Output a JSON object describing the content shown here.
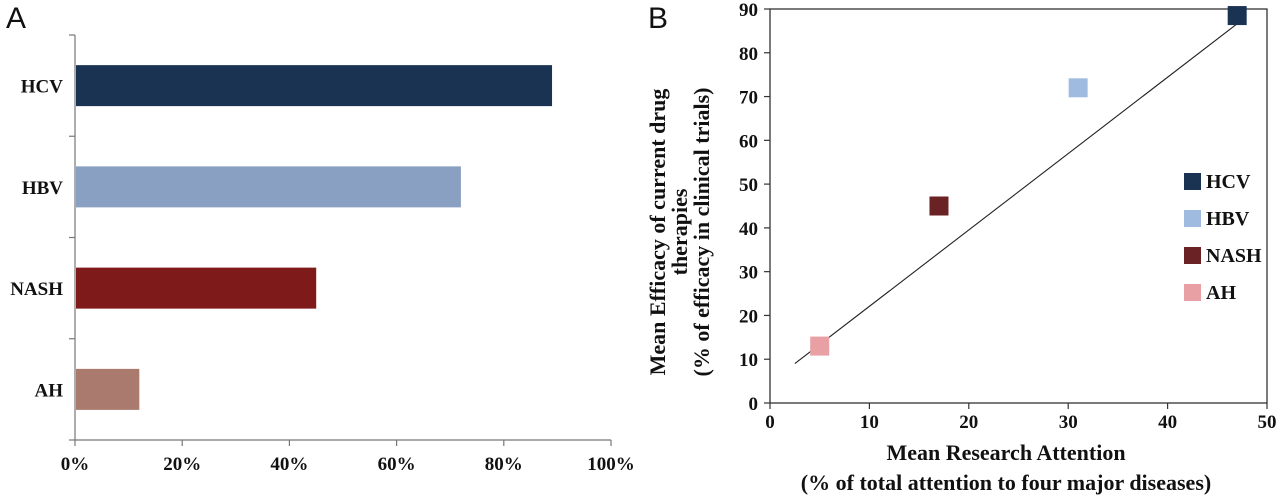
{
  "panels": {
    "a": {
      "letter": "A"
    },
    "b": {
      "letter": "B"
    }
  },
  "chart_data": [
    {
      "type": "bar",
      "orientation": "horizontal",
      "categories": [
        "HCV",
        "HBV",
        "NASH",
        "AH"
      ],
      "values": [
        89,
        72,
        45,
        12
      ],
      "colors": [
        "#1b3352",
        "#8aa0c2",
        "#7f1a1a",
        "#a97a6d"
      ],
      "xlim": [
        0,
        100
      ],
      "xticks": [
        "0%",
        "20%",
        "40%",
        "60%",
        "80%",
        "100%"
      ],
      "xlabel": "",
      "ylabel": "",
      "grid": false
    },
    {
      "type": "scatter",
      "xlim": [
        0,
        50
      ],
      "ylim": [
        0,
        90
      ],
      "xticks": [
        0,
        10,
        20,
        30,
        40,
        50
      ],
      "yticks": [
        0,
        10,
        20,
        30,
        40,
        50,
        60,
        70,
        80,
        90
      ],
      "xlabel": [
        "Mean Research Attention",
        "(% of total attention to four major diseases)"
      ],
      "ylabel": [
        "Mean Efficacy of current drug",
        "therapies",
        "(% of efficacy in clinical trials)"
      ],
      "series": [
        {
          "name": "HCV",
          "x": 47,
          "y": 88.5,
          "color": "#1b3352"
        },
        {
          "name": "HBV",
          "x": 31,
          "y": 72,
          "color": "#9fbbe0"
        },
        {
          "name": "NASH",
          "x": 17,
          "y": 45,
          "color": "#6b2224"
        },
        {
          "name": "AH",
          "x": 5,
          "y": 13,
          "color": "#e8a0a4"
        }
      ],
      "trendline": {
        "x": [
          2.5,
          47.5
        ],
        "y": [
          9,
          87.5
        ]
      },
      "legend_position": "right",
      "grid": false
    }
  ]
}
